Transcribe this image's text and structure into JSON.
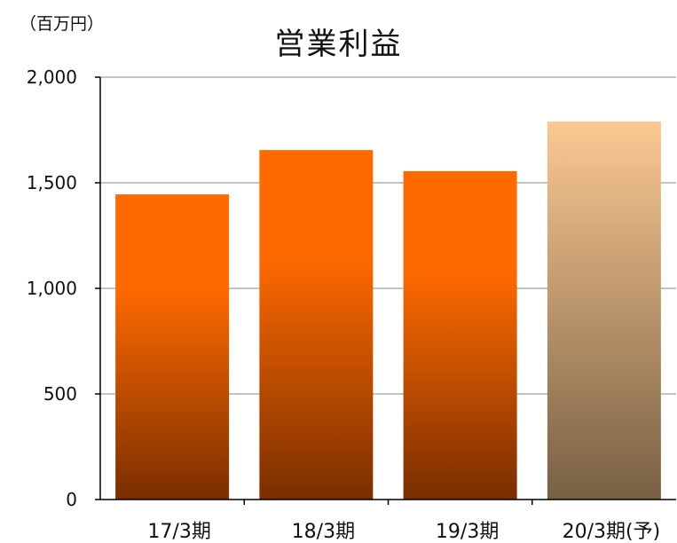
{
  "chart_data": {
    "type": "bar",
    "title": "営業利益",
    "unit_label": "（百万円）",
    "categories": [
      "17/3期",
      "18/3期",
      "19/3期",
      "20/3期(予)"
    ],
    "values": [
      1445,
      1655,
      1555,
      1790
    ],
    "forecast": [
      false,
      false,
      false,
      true
    ],
    "ylim": [
      0,
      2000
    ],
    "yticks": [
      0,
      500,
      1000,
      1500,
      2000
    ],
    "ytick_labels": [
      "0",
      "500",
      "1,000",
      "1,500",
      "2,000"
    ],
    "grid": true,
    "legend": "none",
    "colors": {
      "actual_top": "#ff6a00",
      "actual_bottom": "#7a2e00",
      "forecast_top": "#fbc892",
      "forecast_bottom": "#786044",
      "axis": "#000000",
      "grid": "#888888"
    }
  }
}
